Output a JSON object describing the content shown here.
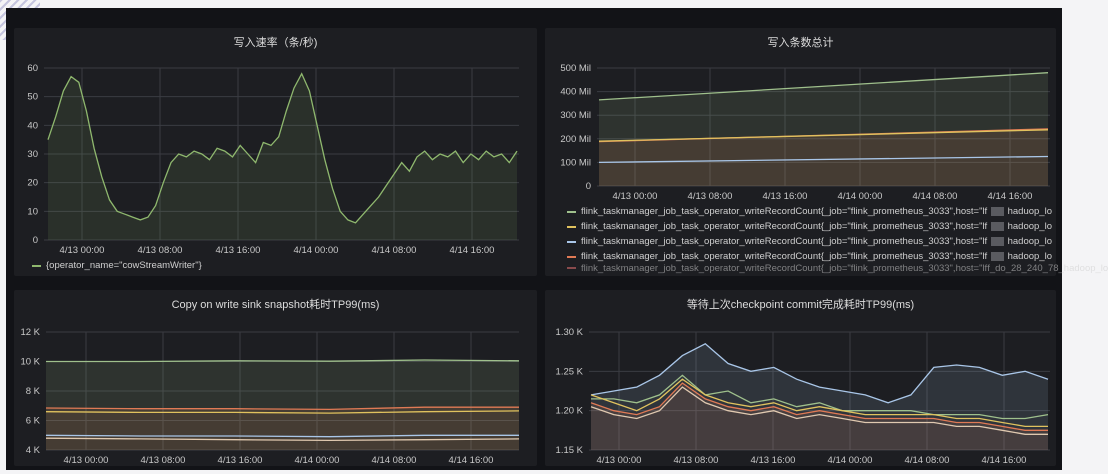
{
  "chart_data": [
    {
      "type": "line",
      "title": "写入速率（条/秒)",
      "x_ticks": [
        "4/13 00:00",
        "4/13 08:00",
        "4/13 16:00",
        "4/14 00:00",
        "4/14 08:00",
        "4/14 16:00"
      ],
      "ylim": [
        0,
        60
      ],
      "y_ticks": [
        0,
        10,
        20,
        30,
        40,
        50,
        60
      ],
      "grid": true,
      "series": [
        {
          "name": "{operator_name=\"cowStreamWriter\"}",
          "color": "#8fb86e",
          "x": [
            0,
            1,
            2,
            3,
            4,
            5,
            6,
            7,
            8,
            9,
            10,
            11,
            12,
            13,
            14,
            15,
            16,
            17,
            18,
            19,
            20,
            21,
            22,
            23,
            24,
            25,
            26,
            27,
            28,
            29,
            30,
            31,
            32,
            33,
            34,
            35,
            36,
            37,
            38,
            39,
            40,
            41,
            42,
            43,
            44,
            45,
            46,
            47,
            48,
            49,
            50,
            51,
            52,
            53,
            54,
            55,
            56,
            57,
            58,
            59,
            60,
            61
          ],
          "y": [
            35,
            43,
            52,
            57,
            55,
            45,
            32,
            22,
            14,
            10,
            9,
            8,
            7,
            8,
            12,
            20,
            27,
            30,
            29,
            31,
            30,
            28,
            32,
            31,
            29,
            33,
            30,
            27,
            34,
            33,
            36,
            45,
            53,
            58,
            52,
            40,
            28,
            18,
            10,
            7,
            6,
            9,
            12,
            15,
            19,
            23,
            27,
            24,
            29,
            31,
            28,
            30,
            29,
            31,
            27,
            30,
            28,
            31,
            29,
            30,
            27,
            31
          ]
        }
      ]
    },
    {
      "type": "line",
      "title": "写入条数总计",
      "x_ticks": [
        "4/13 00:00",
        "4/13 08:00",
        "4/13 16:00",
        "4/14 00:00",
        "4/14 08:00",
        "4/14 16:00"
      ],
      "y_ticks": [
        "0",
        "100 Mil",
        "200 Mil",
        "300 Mil",
        "400 Mil",
        "500 Mil"
      ],
      "ylim": [
        0,
        500
      ],
      "grid": true,
      "series": [
        {
          "name": "flink_taskmanager_job_task_operator_writeRecordCount{_job=\"flink_prometheus_3033\",host=\"lf",
          "color": "#9fc08c",
          "values": [
            365,
            480
          ]
        },
        {
          "name": "flink_taskmanager_job_task_operator_writeRecordCount{_job=\"flink_prometheus_3033\",host=\"lf",
          "color": "#e0c25e",
          "values": [
            190,
            238
          ]
        },
        {
          "name": "flink_taskmanager_job_task_operator_writeRecordCount{_job=\"flink_prometheus_3033\",host=\"lf",
          "color": "#a9c6e8",
          "values": [
            100,
            125
          ]
        },
        {
          "name": "flink_taskmanager_job_task_operator_writeRecordCount{_job=\"flink_prometheus_3033\",host=\"lf",
          "color": "#e07a55",
          "values": [
            188,
            242
          ]
        },
        {
          "name": "",
          "color": "#e06f6f",
          "values": [
            185,
            236
          ]
        }
      ],
      "legend_suffixes": [
        "haduop_lo",
        "hadoop_lo",
        "hadoop_lo",
        "hadoop_lo",
        "f_do_28_240_78_hadoop_lo"
      ]
    },
    {
      "type": "line",
      "title": "Copy on write sink snapshot耗时TP99(ms)",
      "x_ticks": [
        "4/13 00:00",
        "4/13 08:00",
        "4/13 16:00",
        "4/14 00:00",
        "4/14 08:00",
        "4/14 16:00"
      ],
      "y_ticks": [
        "4 K",
        "6 K",
        "8 K",
        "10 K",
        "12 K"
      ],
      "ylim": [
        4,
        12
      ],
      "grid": true,
      "series": [
        {
          "name": "",
          "color": "#9fc08c",
          "values": [
            10.0,
            10.0,
            10.05,
            10.02,
            10.1,
            10.05
          ]
        },
        {
          "name": "",
          "color": "#e07a55",
          "values": [
            6.85,
            6.8,
            6.8,
            6.75,
            6.9,
            6.9
          ]
        },
        {
          "name": "",
          "color": "#e0c25e",
          "values": [
            6.6,
            6.55,
            6.55,
            6.5,
            6.6,
            6.65
          ]
        },
        {
          "name": "",
          "color": "#a9c6e8",
          "values": [
            5.0,
            4.95,
            4.95,
            4.9,
            5.0,
            5.0
          ]
        },
        {
          "name": "",
          "color": "#e0c9b0",
          "values": [
            4.8,
            4.75,
            4.7,
            4.65,
            4.7,
            4.75
          ]
        }
      ]
    },
    {
      "type": "line",
      "title": "等待上次checkpoint commit完成耗时TP99(ms)",
      "x_ticks": [
        "4/13 00:00",
        "4/13 08:00",
        "4/13 16:00",
        "4/14 00:00",
        "4/14 08:00",
        "4/14 16:00"
      ],
      "y_ticks": [
        "1.15 K",
        "1.20 K",
        "1.25 K",
        "1.30 K"
      ],
      "ylim": [
        1.15,
        1.3
      ],
      "grid": true,
      "series": [
        {
          "name": "",
          "color": "#a9c6e8",
          "values": [
            1.22,
            1.225,
            1.23,
            1.245,
            1.27,
            1.285,
            1.26,
            1.25,
            1.255,
            1.24,
            1.23,
            1.225,
            1.22,
            1.21,
            1.22,
            1.255,
            1.258,
            1.255,
            1.245,
            1.25,
            1.24
          ]
        },
        {
          "name": "",
          "color": "#9fc08c",
          "values": [
            1.215,
            1.215,
            1.21,
            1.22,
            1.245,
            1.22,
            1.225,
            1.21,
            1.215,
            1.205,
            1.21,
            1.2,
            1.2,
            1.2,
            1.2,
            1.195,
            1.195,
            1.195,
            1.19,
            1.19,
            1.195
          ]
        },
        {
          "name": "",
          "color": "#e0c25e",
          "values": [
            1.22,
            1.21,
            1.2,
            1.215,
            1.24,
            1.22,
            1.21,
            1.205,
            1.21,
            1.2,
            1.205,
            1.2,
            1.195,
            1.195,
            1.195,
            1.195,
            1.19,
            1.19,
            1.185,
            1.18,
            1.18
          ]
        },
        {
          "name": "",
          "color": "#e07a55",
          "values": [
            1.21,
            1.2,
            1.195,
            1.205,
            1.235,
            1.215,
            1.205,
            1.2,
            1.205,
            1.195,
            1.2,
            1.195,
            1.19,
            1.19,
            1.19,
            1.19,
            1.185,
            1.185,
            1.18,
            1.175,
            1.175
          ]
        },
        {
          "name": "",
          "color": "#e0c9b0",
          "values": [
            1.205,
            1.195,
            1.19,
            1.2,
            1.23,
            1.21,
            1.2,
            1.195,
            1.2,
            1.19,
            1.195,
            1.19,
            1.185,
            1.185,
            1.185,
            1.185,
            1.18,
            1.18,
            1.175,
            1.17,
            1.17
          ]
        }
      ]
    }
  ]
}
